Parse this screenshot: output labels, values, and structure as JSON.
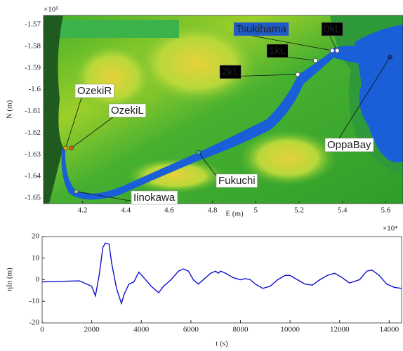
{
  "chart_data": [
    {
      "type": "map",
      "xlabel": "E (m)",
      "ylabel": "N (m)",
      "x_exponent": "×10⁴",
      "y_exponent": "×10⁵",
      "xlim": [
        4.02,
        5.68
      ],
      "ylim": [
        -1.6526,
        -1.5658
      ],
      "xticks": [
        4.2,
        4.4,
        4.6,
        4.8,
        5,
        5.2,
        5.4,
        5.6
      ],
      "yticks": [
        -1.57,
        -1.58,
        -1.59,
        -1.6,
        -1.61,
        -1.62,
        -1.63,
        -1.64,
        -1.65
      ],
      "stations": [
        {
          "name": "OzekiR",
          "x": 4.122,
          "y": -1.627,
          "color": "#d4b106"
        },
        {
          "name": "OzekiL",
          "x": 4.148,
          "y": -1.627,
          "color": "#c8642a"
        },
        {
          "name": "Iinokawa",
          "x": 4.171,
          "y": -1.647,
          "color": "#8cc08c"
        },
        {
          "name": "Fukuchi",
          "x": 4.736,
          "y": -1.629,
          "color": "#2bb3b3"
        },
        {
          "name": "2kL",
          "x": 5.194,
          "y": -1.593,
          "color": "#ffffff"
        },
        {
          "name": "1kL",
          "x": 5.276,
          "y": -1.5866,
          "color": "#ffffff"
        },
        {
          "name": "Tsukihama",
          "x": 5.353,
          "y": -1.582,
          "color": "#ffffff"
        },
        {
          "name": "0kL",
          "x": 5.376,
          "y": -1.582,
          "color": "#ffffff"
        },
        {
          "name": "OppaBay",
          "x": 5.62,
          "y": -1.585,
          "color": "#1a2a8a"
        }
      ]
    },
    {
      "type": "line",
      "xlabel": "t (s)",
      "ylabel": "ηIn (m)",
      "xlim": [
        0,
        14500
      ],
      "ylim": [
        -20,
        20
      ],
      "xticks": [
        0,
        2000,
        4000,
        6000,
        8000,
        10000,
        12000,
        14000
      ],
      "yticks": [
        -20,
        -10,
        0,
        10,
        20
      ],
      "series": [
        {
          "color": "#1010d0",
          "x": [
            0,
            1500,
            2000,
            2150,
            2300,
            2450,
            2550,
            2700,
            2800,
            3000,
            3200,
            3300,
            3500,
            3700,
            3900,
            4100,
            4400,
            4700,
            4900,
            5200,
            5500,
            5700,
            5900,
            6100,
            6300,
            6600,
            6800,
            7000,
            7100,
            7200,
            7400,
            7700,
            8000,
            8200,
            8400,
            8600,
            8900,
            9200,
            9500,
            9800,
            10000,
            10300,
            10600,
            10900,
            11200,
            11500,
            11800,
            12100,
            12400,
            12800,
            13100,
            13300,
            13600,
            13900,
            14200,
            14500
          ],
          "values": [
            -1,
            -0.5,
            -3,
            -7.5,
            2,
            15,
            17,
            16.5,
            8,
            -4,
            -11,
            -7,
            -2,
            -1,
            3.5,
            1,
            -3,
            -6,
            -3,
            0,
            4,
            5,
            4,
            0,
            -2,
            1,
            3,
            4,
            3,
            4,
            3,
            1,
            0,
            0.5,
            0,
            -2,
            -4,
            -3,
            0,
            2,
            2,
            0,
            -2,
            -2.5,
            0,
            2,
            3,
            1,
            -1.5,
            0,
            4,
            4.5,
            2,
            -2,
            -3.5,
            -4
          ]
        }
      ]
    }
  ]
}
